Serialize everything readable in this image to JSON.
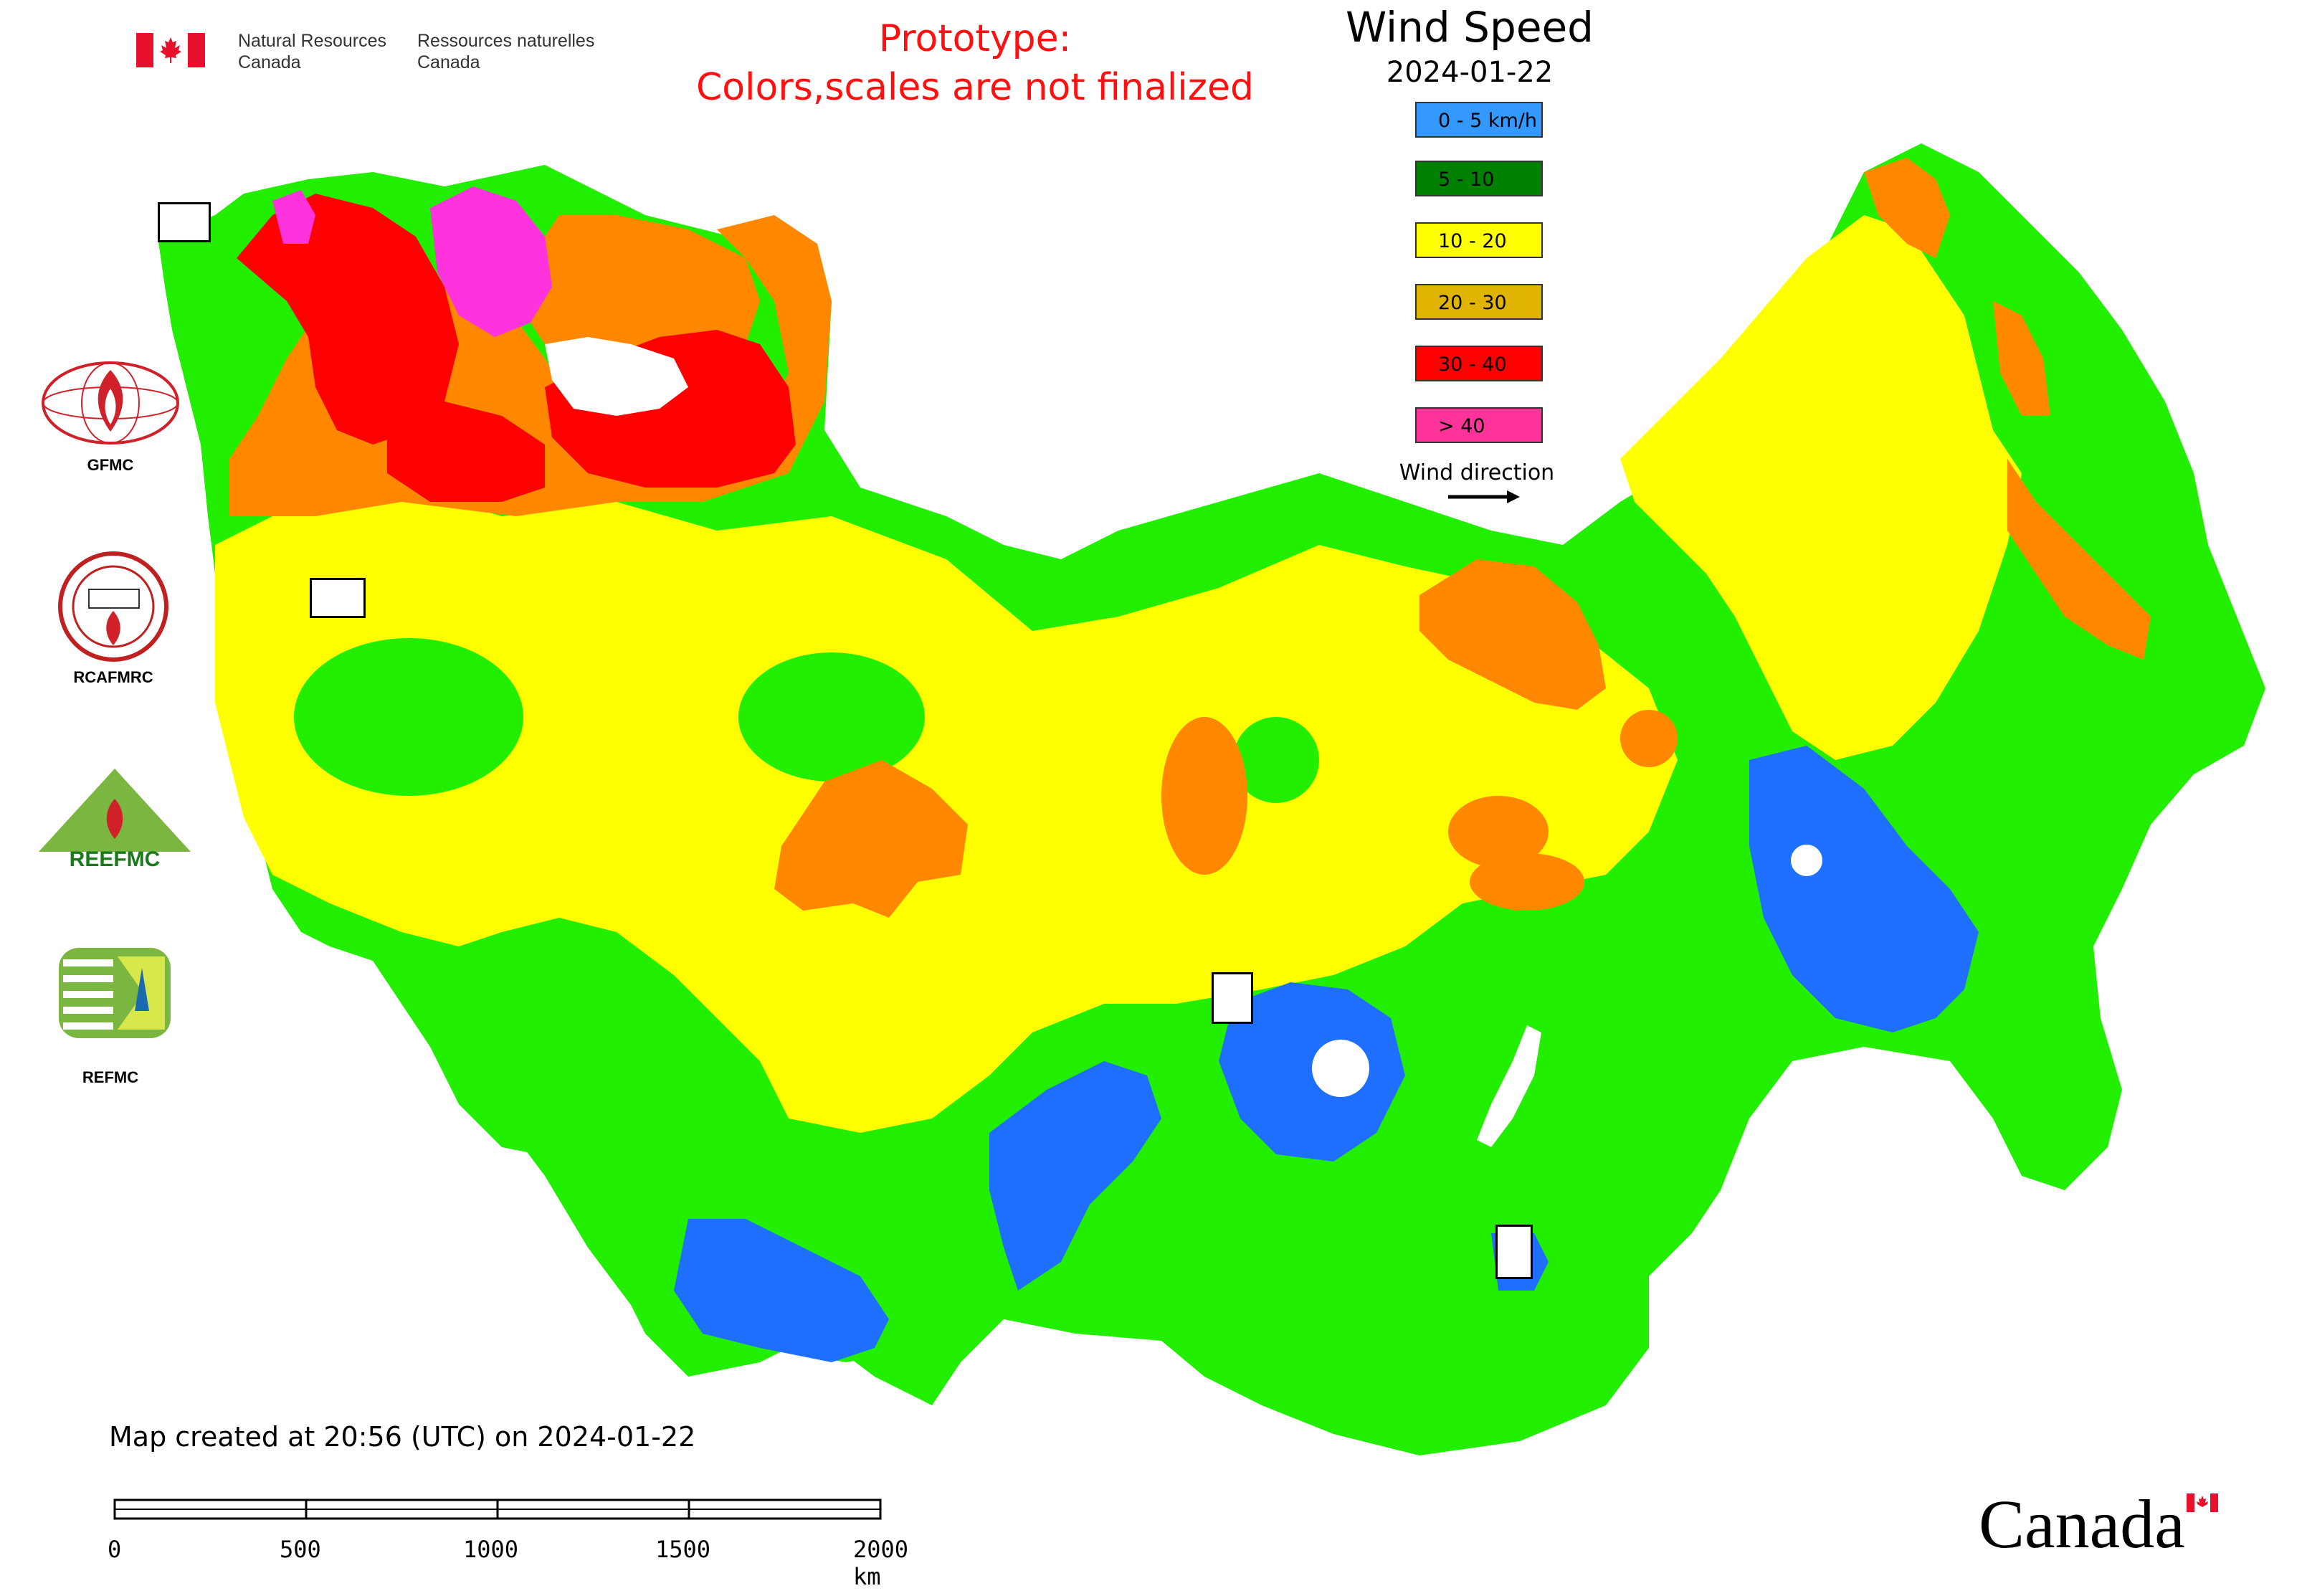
{
  "header": {
    "agency_en": "Natural Resources\nCanada",
    "agency_fr": "Ressources naturelles\nCanada",
    "prototype_line1": "Prototype:",
    "prototype_line2": "Colors,scales are not finalized"
  },
  "legend": {
    "title": "Wind Speed",
    "date": "2024-01-22",
    "items": [
      {
        "label": "0 - 5 km/h",
        "color": "#3399ff"
      },
      {
        "label": "5 - 10",
        "color": "#008000"
      },
      {
        "label": "10 - 20",
        "color": "#ffff00"
      },
      {
        "label": "20 - 30",
        "color": "#e0b400"
      },
      {
        "label": "30 - 40",
        "color": "#ff0000"
      },
      {
        "label": "> 40",
        "color": "#ff3399"
      }
    ],
    "wind_direction_label": "Wind direction"
  },
  "map_fill_colors": {
    "calm": "#1f6fff",
    "light": "#22ee00",
    "moderate": "#ffff00",
    "strong": "#ff8800",
    "very_strong": "#ff0000",
    "extreme": "#ff33dd",
    "boundary": "#cc66cc"
  },
  "partners": [
    {
      "label": "GFMC"
    },
    {
      "label": "RCAFMRC"
    },
    {
      "label": "REEFMC"
    },
    {
      "label": "REFMC"
    }
  ],
  "footer": {
    "created": "Map created at 20:56 (UTC) on 2024-01-22",
    "scale_ticks": [
      "0",
      "500",
      "1000",
      "1500",
      "2000 km"
    ],
    "wordmark": "Canada"
  }
}
